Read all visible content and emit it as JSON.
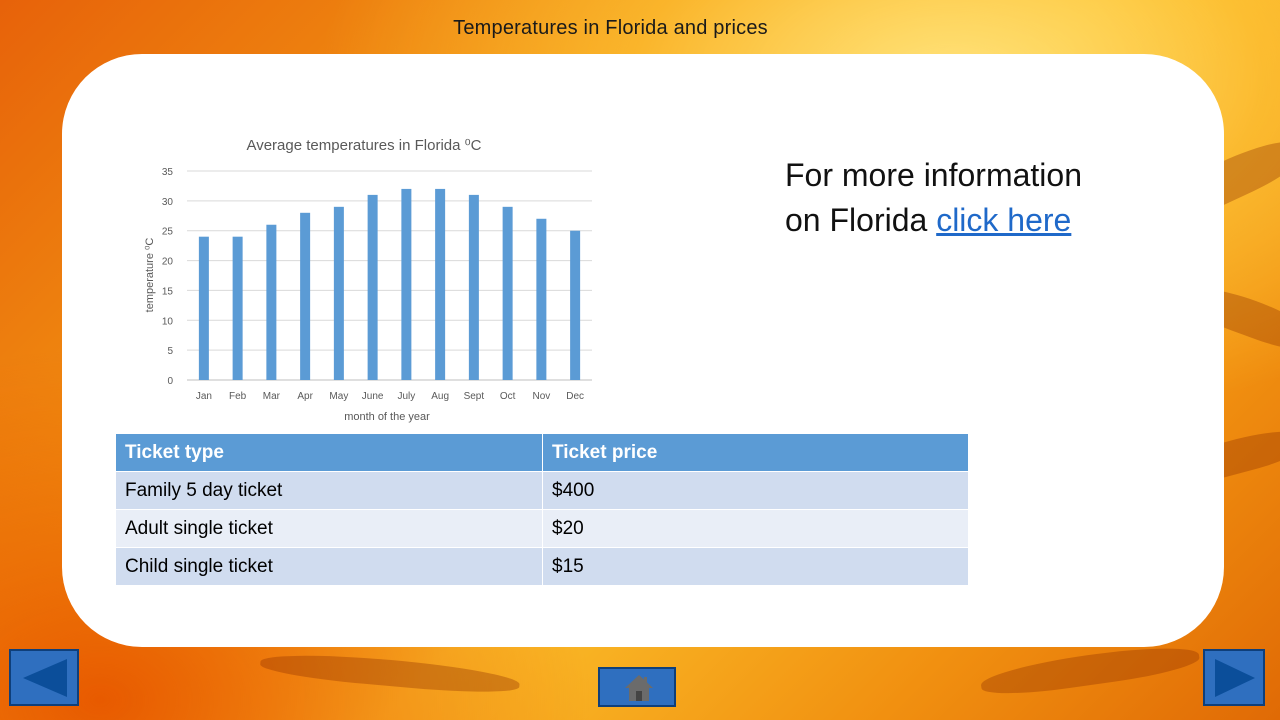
{
  "page": {
    "title": "Temperatures in Florida and prices"
  },
  "info": {
    "text": "For more information on Florida ",
    "link": "click here"
  },
  "chart_data": {
    "type": "bar",
    "title": "Average temperatures in Florida ⁰C",
    "xlabel": "month of the year",
    "ylabel": "temperature ⁰C",
    "categories": [
      "Jan",
      "Feb",
      "Mar",
      "Apr",
      "May",
      "June",
      "July",
      "Aug",
      "Sept",
      "Oct",
      "Nov",
      "Dec"
    ],
    "values": [
      24,
      24,
      26,
      28,
      29,
      31,
      32,
      32,
      31,
      29,
      27,
      25
    ],
    "ylim": [
      0,
      35
    ],
    "yticks": [
      0,
      5,
      10,
      15,
      20,
      25,
      30,
      35
    ],
    "grid": true,
    "legend": "none",
    "bar_color": "#5b9bd5"
  },
  "table": {
    "headers": [
      "Ticket type",
      "Ticket price"
    ],
    "rows": [
      [
        "Family 5 day ticket",
        "$400"
      ],
      [
        "Adult single ticket",
        "$20"
      ],
      [
        "Child single ticket",
        "$15"
      ]
    ]
  },
  "nav": {
    "prev_icon": "left-arrow-icon",
    "next_icon": "right-arrow-icon",
    "home_icon": "home-icon",
    "accent": "#2f6fbf"
  }
}
